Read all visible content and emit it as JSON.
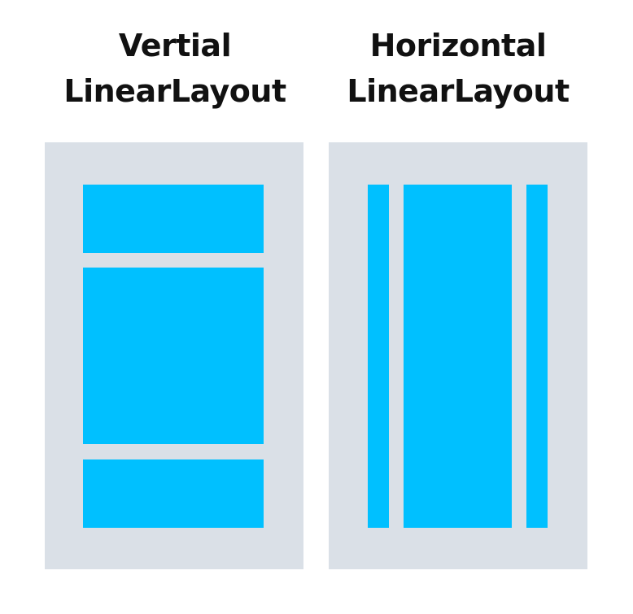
{
  "vertical": {
    "title_line1": "Vertial",
    "title_line2": "LinearLayout"
  },
  "horizontal": {
    "title_line1": "Horizontal",
    "title_line2": "LinearLayout"
  },
  "colors": {
    "background": "#ffffff",
    "panel": "#dae0e7",
    "child": "#00c0ff",
    "text": "#111111"
  }
}
